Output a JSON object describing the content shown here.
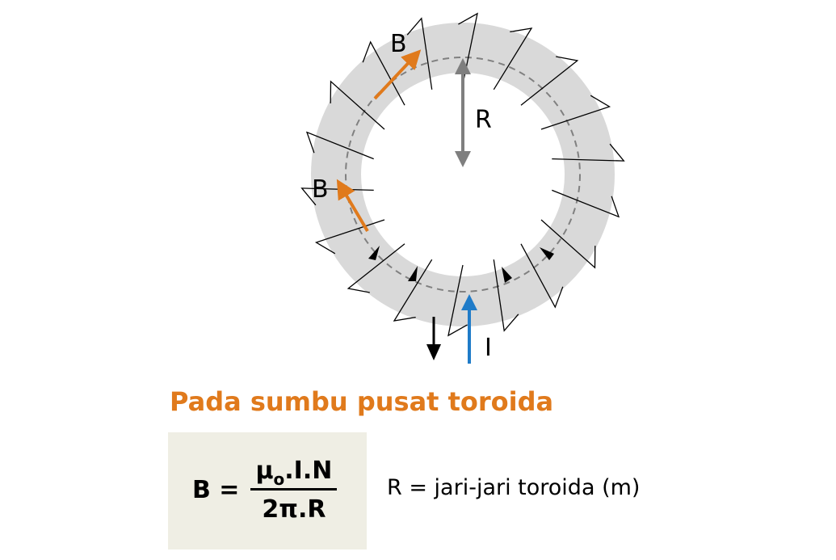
{
  "diagram": {
    "labels": {
      "b_upper": "B",
      "b_lower": "B",
      "radius": "R",
      "current": "I"
    },
    "colors": {
      "ring": "#D9D9D9",
      "field_arrow": "#E07A1C",
      "radius_arrow": "#7F7F7F",
      "current_arrow": "#1F7BC8",
      "coil": "#000000",
      "dashed_path": "#808080"
    }
  },
  "heading": "Pada sumbu pusat toroida",
  "formula": {
    "lhs": "B =",
    "numerator_mu": "μ",
    "numerator_sub": "o",
    "numerator_rest": ".I.N",
    "denominator": "2π.R"
  },
  "note": "R = jari-jari toroida (m)"
}
